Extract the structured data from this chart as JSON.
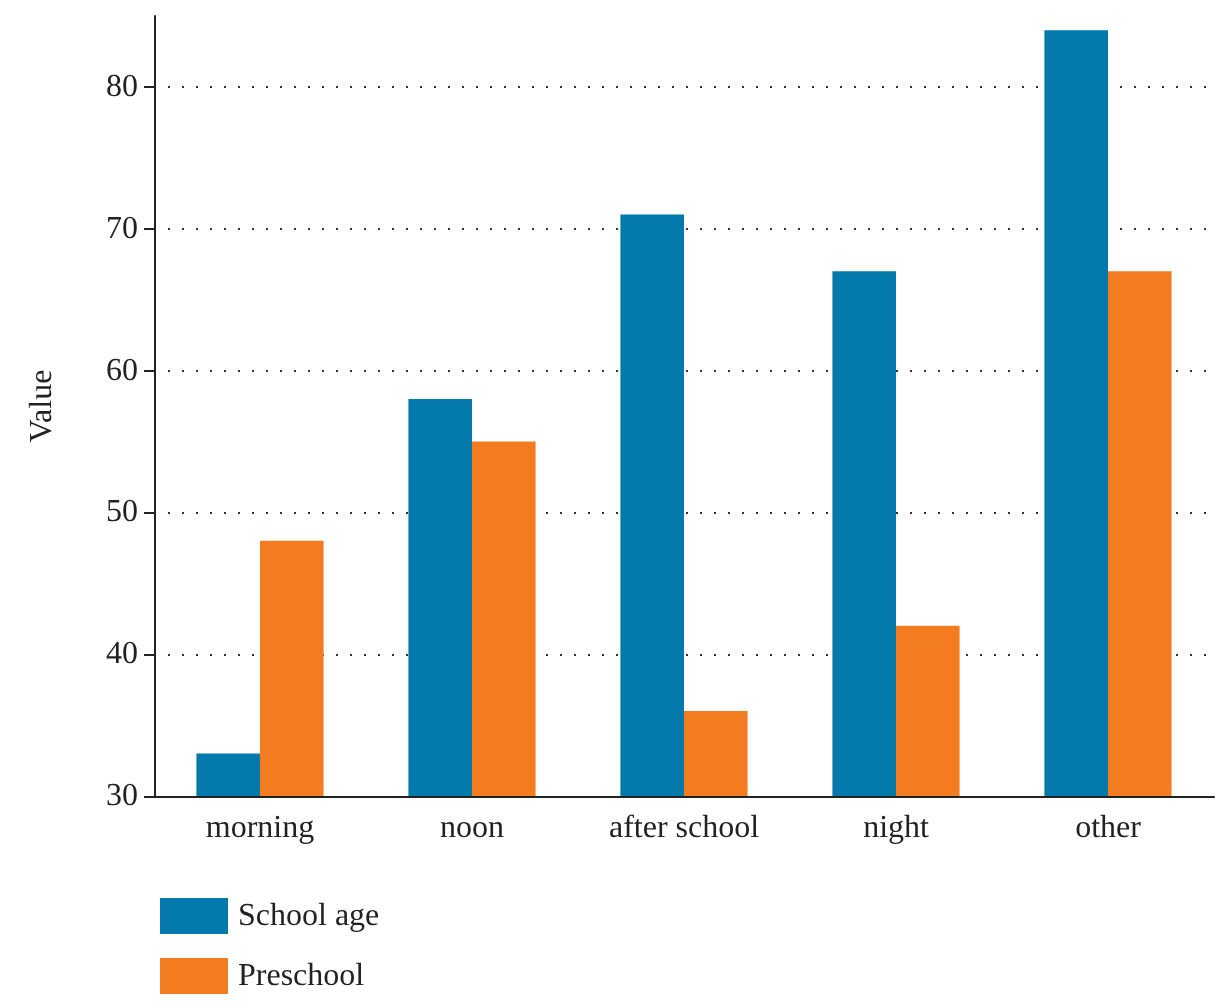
{
  "chart_data": {
    "type": "bar",
    "ylabel": "Value",
    "categories": [
      "morning",
      "noon",
      "after school",
      "night",
      "other"
    ],
    "series": [
      {
        "name": "School age",
        "color": "#037aab",
        "values": [
          33,
          58,
          71,
          67,
          84
        ]
      },
      {
        "name": "Preschool",
        "color": "#f47c20",
        "values": [
          48,
          55,
          36,
          42,
          67
        ]
      }
    ],
    "ylim": [
      30,
      85
    ],
    "yticks": [
      30,
      40,
      50,
      60,
      70,
      80
    ],
    "grid": "y",
    "legend": "bottom left"
  }
}
